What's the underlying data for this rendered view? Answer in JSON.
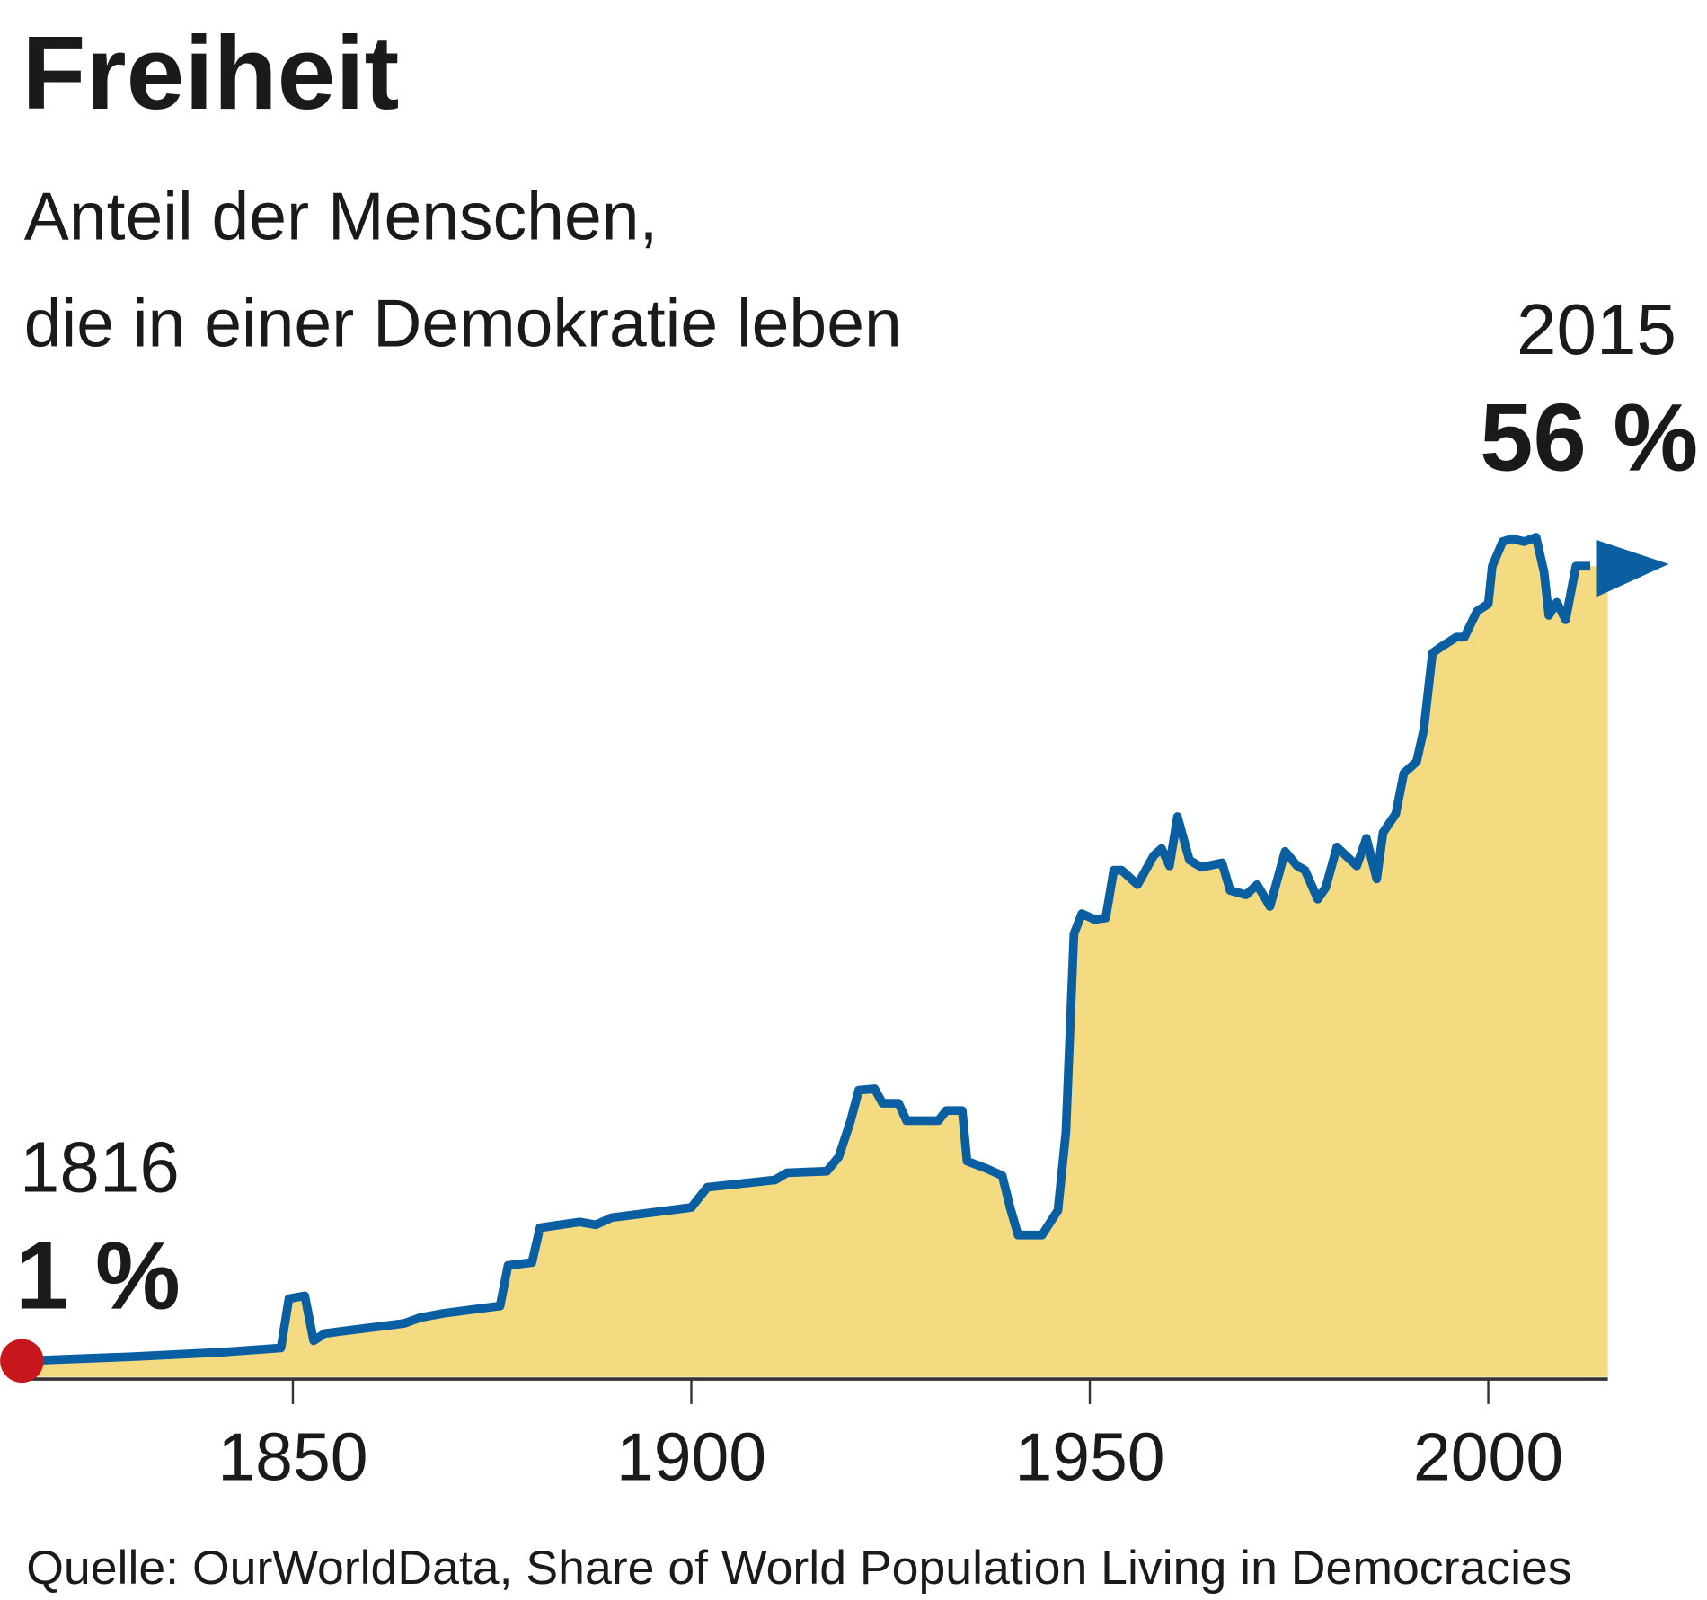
{
  "chart_data": {
    "type": "area",
    "title": "Freiheit",
    "subtitle_lines": [
      "Anteil der Menschen,",
      "die in einer Demokratie leben"
    ],
    "source": "Quelle: OurWorldData, Share of World Population Living in Democracies",
    "x_ticks": [
      "1850",
      "1900",
      "1950",
      "2000"
    ],
    "tick_years": [
      1850,
      1900,
      1950,
      2000
    ],
    "xlim": [
      1816,
      2015
    ],
    "ylim": [
      0,
      60
    ],
    "grid": false,
    "start_label": {
      "year": "1816",
      "value": "1 %"
    },
    "end_label": {
      "year": "2015",
      "value": "56 %"
    },
    "colors": {
      "line": "#0a5fa3",
      "fill": "#f4da80",
      "start_dot": "#c8161d",
      "axis": "#333333"
    },
    "x": [
      1816,
      1830,
      1841,
      1848.5,
      1849.5,
      1851.5,
      1852.6,
      1854,
      1864,
      1866,
      1869,
      1876,
      1877,
      1880,
      1881,
      1886,
      1888,
      1890,
      1900,
      1902,
      1910.5,
      1912,
      1917,
      1918.5,
      1920,
      1921,
      1923,
      1924,
      1926,
      1927,
      1931,
      1932,
      1934,
      1934.6,
      1937,
      1939,
      1940,
      1941,
      1944,
      1946,
      1947,
      1948,
      1949,
      1950.6,
      1952,
      1953,
      1954,
      1956,
      1958,
      1959,
      1960,
      1961,
      1962.5,
      1964,
      1966.6,
      1967.6,
      1969.6,
      1971,
      1972.6,
      1974.5,
      1976,
      1977,
      1978.6,
      1979.6,
      1981,
      1983.5,
      1984.7,
      1986,
      1986.8,
      1988.4,
      1989.4,
      1991,
      1991.9,
      1993,
      1994,
      1996,
      1997,
      1998.6,
      2000,
      2000.5,
      2001.8,
      2003,
      2004.5,
      2006,
      2007,
      2007.6,
      2008.6,
      2009.7,
      2011,
      2012.8,
      2015
    ],
    "y": [
      1.1,
      1.4,
      1.7,
      2.0,
      5.4,
      5.6,
      2.5,
      3.0,
      3.7,
      4.1,
      4.4,
      4.9,
      7.7,
      7.9,
      10.3,
      10.7,
      10.5,
      11,
      11.7,
      13.1,
      13.6,
      14.1,
      14.2,
      15.2,
      17.7,
      19.8,
      19.9,
      18.9,
      18.9,
      17.7,
      17.7,
      18.4,
      18.4,
      14.9,
      14.4,
      13.9,
      11.7,
      9.8,
      9.8,
      11.5,
      16.9,
      30.6,
      32,
      31.6,
      31.7,
      35,
      35,
      34,
      36,
      36.5,
      35.3,
      38.7,
      35.7,
      35.2,
      35.5,
      33.6,
      33.3,
      34,
      32.5,
      36.3,
      35.3,
      35,
      33,
      33.8,
      36.6,
      35.3,
      37.2,
      34.4,
      37.6,
      38.9,
      41.7,
      42.5,
      44.7,
      50,
      50.4,
      51.1,
      51.1,
      52.9,
      53.4,
      56,
      57.7,
      57.9,
      57.7,
      58,
      55.6,
      52.6,
      53.5,
      52.3,
      56,
      56,
      56
    ]
  }
}
